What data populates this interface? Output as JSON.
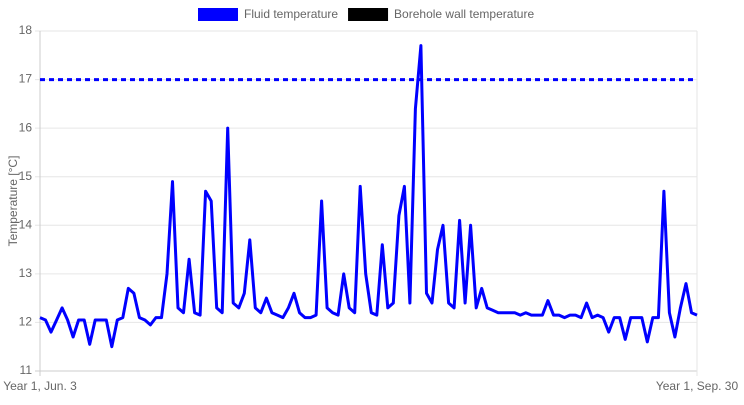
{
  "chart_data": {
    "type": "line",
    "y_label": "Temperature [°C]",
    "x": [
      0,
      1,
      2,
      3,
      4,
      5,
      6,
      7,
      8,
      9,
      10,
      11,
      12,
      13,
      14,
      15,
      16,
      17,
      18,
      19,
      20,
      21,
      22,
      23,
      24,
      25,
      26,
      27,
      28,
      29,
      30,
      31,
      32,
      33,
      34,
      35,
      36,
      37,
      38,
      39,
      40,
      41,
      42,
      43,
      44,
      45,
      46,
      47,
      48,
      49,
      50,
      51,
      52,
      53,
      54,
      55,
      56,
      57,
      58,
      59,
      60,
      61,
      62,
      63,
      64,
      65,
      66,
      67,
      68,
      69,
      70,
      71,
      72,
      73,
      74,
      75,
      76,
      77,
      78,
      79,
      80,
      81,
      82,
      83,
      84,
      85,
      86,
      87,
      88,
      89,
      90,
      91,
      92,
      93,
      94,
      95,
      96,
      97,
      98,
      99,
      100,
      101,
      102,
      103,
      104,
      105,
      106,
      107,
      108,
      109,
      110,
      111,
      112,
      113,
      114,
      115,
      116,
      117,
      118,
      119
    ],
    "series": [
      {
        "name": "Fluid temperature",
        "color": "#0000ff",
        "values": [
          12.1,
          12.05,
          11.8,
          12.05,
          12.3,
          12.05,
          11.7,
          12.05,
          12.05,
          11.55,
          12.05,
          12.05,
          12.05,
          11.5,
          12.05,
          12.1,
          12.7,
          12.6,
          12.1,
          12.05,
          11.95,
          12.1,
          12.1,
          13.0,
          14.9,
          12.3,
          12.2,
          13.3,
          12.2,
          12.15,
          14.7,
          14.5,
          12.3,
          12.2,
          16.0,
          12.4,
          12.3,
          12.6,
          13.7,
          12.3,
          12.2,
          12.5,
          12.2,
          12.15,
          12.1,
          12.3,
          12.6,
          12.2,
          12.1,
          12.1,
          12.15,
          14.5,
          12.3,
          12.2,
          12.15,
          13.0,
          12.3,
          12.2,
          14.8,
          13.0,
          12.2,
          12.15,
          13.6,
          12.3,
          12.4,
          14.2,
          14.8,
          12.4,
          16.4,
          17.7,
          12.6,
          12.4,
          13.5,
          14.0,
          12.4,
          12.3,
          14.1,
          12.4,
          14.0,
          12.3,
          12.7,
          12.3,
          12.25,
          12.2,
          12.2,
          12.2,
          12.2,
          12.15,
          12.2,
          12.15,
          12.15,
          12.15,
          12.45,
          12.15,
          12.15,
          12.1,
          12.15,
          12.15,
          12.1,
          12.4,
          12.1,
          12.15,
          12.1,
          11.8,
          12.1,
          12.1,
          11.65,
          12.1,
          12.1,
          12.1,
          11.6,
          12.1,
          12.1,
          14.7,
          12.2,
          11.7,
          12.3,
          12.8,
          12.2,
          12.15
        ]
      },
      {
        "name": "Borehole wall temperature",
        "color": "#000000",
        "values": [
          null,
          null,
          null,
          null,
          null,
          null,
          null,
          null,
          null,
          null,
          null,
          null,
          null,
          null,
          null,
          null,
          null,
          null,
          null,
          null,
          null,
          null,
          null,
          null,
          null,
          null,
          null,
          null,
          null,
          null,
          null,
          null,
          null,
          null,
          null,
          null,
          null,
          null,
          null,
          null,
          null,
          null,
          null,
          null,
          null,
          null,
          null,
          null,
          null,
          null,
          null,
          null,
          null,
          null,
          null,
          null,
          null,
          null,
          null,
          null,
          null,
          null,
          null,
          null,
          null,
          null,
          null,
          null,
          null,
          null,
          null,
          null,
          null,
          null,
          null,
          null,
          null,
          null,
          null,
          null,
          null,
          null,
          null,
          null,
          null,
          null,
          null,
          null,
          null,
          null,
          null,
          null,
          null,
          null,
          null,
          null,
          null,
          null,
          null,
          null,
          null,
          null,
          null,
          null,
          null,
          null,
          null,
          null,
          null,
          null,
          null,
          null,
          null,
          null,
          null,
          null,
          null,
          null,
          null,
          null
        ]
      }
    ],
    "limit_line": {
      "value": 17,
      "color": "#0000ff"
    },
    "xlim": [
      0,
      119
    ],
    "xticks": [
      {
        "value": 0,
        "label": "Year 1, Jun. 3"
      },
      {
        "value": 119,
        "label": "Year 1, Sep. 30"
      }
    ],
    "ylim": [
      11,
      18
    ],
    "yticks": [
      11,
      12,
      13,
      14,
      15,
      16,
      17,
      18
    ],
    "grid": true
  }
}
